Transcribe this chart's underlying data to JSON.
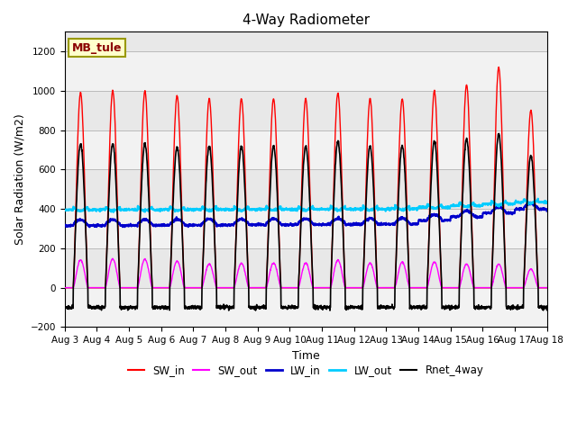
{
  "title": "4-Way Radiometer",
  "xlabel": "Time",
  "ylabel": "Solar Radiation (W/m2)",
  "annotation": "MB_tule",
  "ylim": [
    -200,
    1300
  ],
  "yticks": [
    -200,
    0,
    200,
    400,
    600,
    800,
    1000,
    1200
  ],
  "start_day": 3,
  "num_days": 15,
  "colors": {
    "SW_in": "#ff0000",
    "SW_out": "#ff00ff",
    "LW_in": "#0000cc",
    "LW_out": "#00ccff",
    "Rnet_4way": "#000000"
  },
  "line_widths": {
    "SW_in": 1.0,
    "SW_out": 1.0,
    "LW_in": 1.5,
    "LW_out": 1.5,
    "Rnet_4way": 1.2
  },
  "sw_peaks": [
    990,
    1000,
    1000,
    975,
    960,
    960,
    960,
    960,
    990,
    960,
    960,
    1000,
    1030,
    1120,
    900
  ],
  "sw_out_peaks": [
    140,
    145,
    145,
    135,
    120,
    125,
    125,
    125,
    140,
    125,
    130,
    130,
    120,
    120,
    95
  ],
  "rnet_peaks": [
    730,
    730,
    730,
    715,
    720,
    720,
    720,
    720,
    745,
    720,
    720,
    745,
    755,
    780,
    670
  ],
  "lw_out_base": 410,
  "lw_in_base": 320,
  "rnet_night": -100,
  "plot_bg": "#e8e8e8",
  "band_color": "#ffffff",
  "band_alpha": 0.5
}
